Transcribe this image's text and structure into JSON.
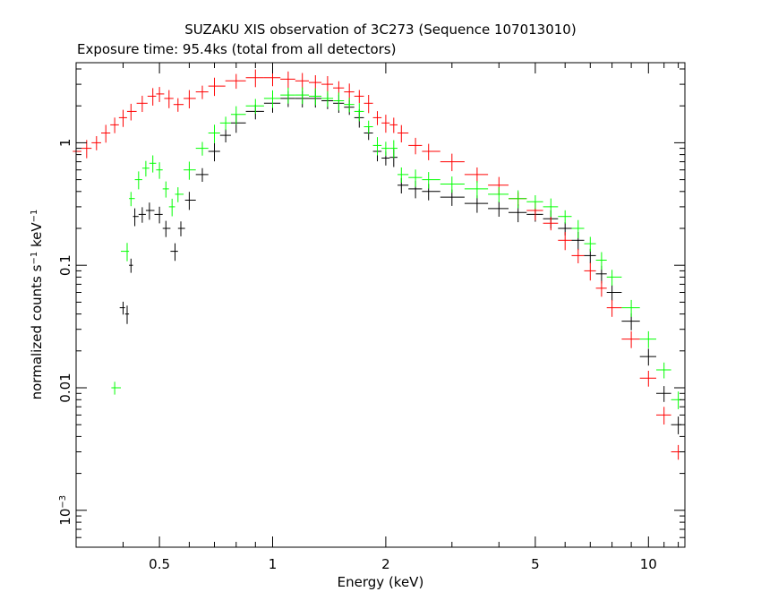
{
  "chart_data": {
    "type": "scatter",
    "title": "SUZAKU XIS observation of 3C273 (Sequence 107013010)",
    "subtitle": "Exposure time: 95.4ks (total from all detectors)",
    "xlabel": "Energy (keV)",
    "ylabel": {
      "pre": "normalized counts s",
      "sup1": "−1",
      "mid": " keV",
      "sup2": "−1"
    },
    "xscale": "log",
    "yscale": "log",
    "xlim": [
      0.3,
      12.5
    ],
    "ylim": [
      0.0005,
      4.5
    ],
    "grid": false,
    "legend": "none",
    "x_ticks": [
      {
        "value": 0.5,
        "label": "0.5"
      },
      {
        "value": 1,
        "label": "1"
      },
      {
        "value": 2,
        "label": "2"
      },
      {
        "value": 5,
        "label": "5"
      },
      {
        "value": 10,
        "label": "10"
      }
    ],
    "y_ticks": [
      {
        "value": 1,
        "label": "1",
        "exp": ""
      },
      {
        "value": 0.1,
        "label": "0.1",
        "exp": ""
      },
      {
        "value": 0.01,
        "label": "0.01",
        "exp": ""
      },
      {
        "value": 0.001,
        "label": "10",
        "exp": "−3"
      }
    ],
    "series": [
      {
        "color": "#000000",
        "points": [
          [
            0.4,
            0.045
          ],
          [
            0.41,
            0.04
          ],
          [
            0.42,
            0.1
          ],
          [
            0.43,
            0.25
          ],
          [
            0.45,
            0.26
          ],
          [
            0.47,
            0.28
          ],
          [
            0.5,
            0.26
          ],
          [
            0.52,
            0.2
          ],
          [
            0.55,
            0.13
          ],
          [
            0.57,
            0.2
          ],
          [
            0.6,
            0.34
          ],
          [
            0.65,
            0.55
          ],
          [
            0.7,
            0.85
          ],
          [
            0.75,
            1.15
          ],
          [
            0.8,
            1.45
          ],
          [
            0.9,
            1.8
          ],
          [
            1.0,
            2.1
          ],
          [
            1.1,
            2.3
          ],
          [
            1.2,
            2.3
          ],
          [
            1.3,
            2.3
          ],
          [
            1.4,
            2.2
          ],
          [
            1.5,
            2.1
          ],
          [
            1.6,
            1.95
          ],
          [
            1.7,
            1.6
          ],
          [
            1.8,
            1.2
          ],
          [
            1.9,
            0.85
          ],
          [
            2.0,
            0.75
          ],
          [
            2.1,
            0.76
          ],
          [
            2.2,
            0.45
          ],
          [
            2.4,
            0.42
          ],
          [
            2.6,
            0.4
          ],
          [
            3.0,
            0.36
          ],
          [
            3.5,
            0.32
          ],
          [
            4.0,
            0.29
          ],
          [
            4.5,
            0.27
          ],
          [
            5.0,
            0.26
          ],
          [
            5.5,
            0.24
          ],
          [
            6.0,
            0.2
          ],
          [
            6.5,
            0.16
          ],
          [
            7.0,
            0.12
          ],
          [
            7.5,
            0.085
          ],
          [
            8.0,
            0.06
          ],
          [
            9.0,
            0.035
          ],
          [
            10.0,
            0.018
          ],
          [
            11.0,
            0.009
          ],
          [
            12.0,
            0.005
          ]
        ]
      },
      {
        "color": "#ff0000",
        "points": [
          [
            0.3,
            0.85
          ],
          [
            0.32,
            0.9
          ],
          [
            0.34,
            1.0
          ],
          [
            0.36,
            1.2
          ],
          [
            0.38,
            1.4
          ],
          [
            0.4,
            1.6
          ],
          [
            0.42,
            1.8
          ],
          [
            0.45,
            2.1
          ],
          [
            0.48,
            2.4
          ],
          [
            0.5,
            2.5
          ],
          [
            0.53,
            2.3
          ],
          [
            0.56,
            2.05
          ],
          [
            0.6,
            2.3
          ],
          [
            0.65,
            2.6
          ],
          [
            0.7,
            2.9
          ],
          [
            0.8,
            3.2
          ],
          [
            0.9,
            3.4
          ],
          [
            1.0,
            3.4
          ],
          [
            1.1,
            3.3
          ],
          [
            1.2,
            3.2
          ],
          [
            1.3,
            3.1
          ],
          [
            1.4,
            3.0
          ],
          [
            1.5,
            2.8
          ],
          [
            1.6,
            2.6
          ],
          [
            1.7,
            2.4
          ],
          [
            1.8,
            2.1
          ],
          [
            1.9,
            1.6
          ],
          [
            2.0,
            1.45
          ],
          [
            2.1,
            1.4
          ],
          [
            2.2,
            1.2
          ],
          [
            2.4,
            0.95
          ],
          [
            2.6,
            0.85
          ],
          [
            3.0,
            0.7
          ],
          [
            3.5,
            0.55
          ],
          [
            4.0,
            0.45
          ],
          [
            4.5,
            0.35
          ],
          [
            5.0,
            0.28
          ],
          [
            5.5,
            0.22
          ],
          [
            6.0,
            0.16
          ],
          [
            6.5,
            0.12
          ],
          [
            7.0,
            0.09
          ],
          [
            7.5,
            0.065
          ],
          [
            8.0,
            0.045
          ],
          [
            9.0,
            0.025
          ],
          [
            10.0,
            0.012
          ],
          [
            11.0,
            0.006
          ],
          [
            12.0,
            0.003
          ]
        ]
      },
      {
        "color": "#00ff00",
        "points": [
          [
            0.38,
            0.01
          ],
          [
            0.41,
            0.13
          ],
          [
            0.42,
            0.35
          ],
          [
            0.44,
            0.5
          ],
          [
            0.46,
            0.62
          ],
          [
            0.48,
            0.68
          ],
          [
            0.5,
            0.6
          ],
          [
            0.52,
            0.42
          ],
          [
            0.54,
            0.3
          ],
          [
            0.56,
            0.38
          ],
          [
            0.6,
            0.6
          ],
          [
            0.65,
            0.9
          ],
          [
            0.7,
            1.2
          ],
          [
            0.75,
            1.45
          ],
          [
            0.8,
            1.7
          ],
          [
            0.9,
            2.0
          ],
          [
            1.0,
            2.3
          ],
          [
            1.1,
            2.45
          ],
          [
            1.2,
            2.45
          ],
          [
            1.3,
            2.4
          ],
          [
            1.4,
            2.3
          ],
          [
            1.5,
            2.2
          ],
          [
            1.6,
            2.05
          ],
          [
            1.7,
            1.8
          ],
          [
            1.8,
            1.35
          ],
          [
            1.9,
            0.95
          ],
          [
            2.0,
            0.9
          ],
          [
            2.1,
            0.9
          ],
          [
            2.2,
            0.55
          ],
          [
            2.4,
            0.52
          ],
          [
            2.6,
            0.5
          ],
          [
            3.0,
            0.46
          ],
          [
            3.5,
            0.42
          ],
          [
            4.0,
            0.38
          ],
          [
            4.5,
            0.35
          ],
          [
            5.0,
            0.33
          ],
          [
            5.5,
            0.3
          ],
          [
            6.0,
            0.25
          ],
          [
            6.5,
            0.2
          ],
          [
            7.0,
            0.15
          ],
          [
            7.5,
            0.11
          ],
          [
            8.0,
            0.08
          ],
          [
            9.0,
            0.045
          ],
          [
            10.0,
            0.025
          ],
          [
            11.0,
            0.014
          ],
          [
            12.0,
            0.008
          ]
        ]
      }
    ]
  }
}
